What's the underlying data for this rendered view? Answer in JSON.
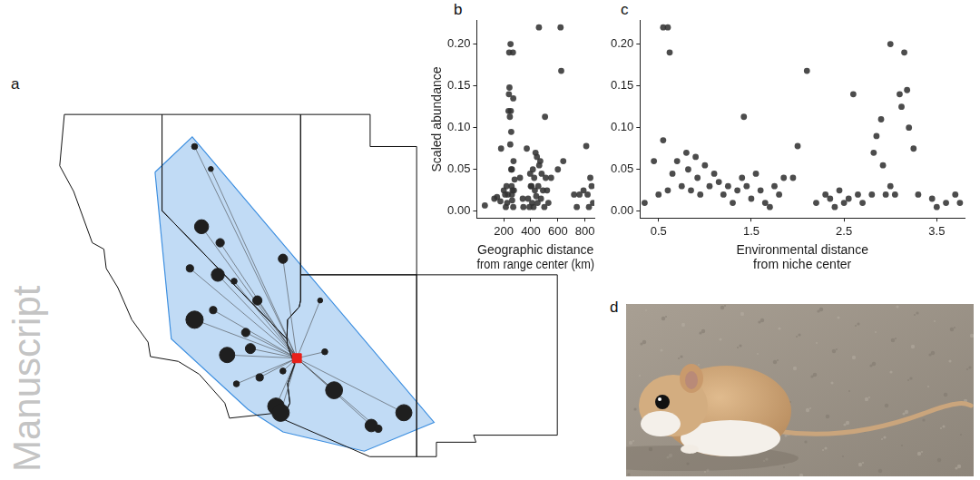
{
  "watermark": "Manuscript",
  "chart_data": [
    {
      "panel": "a",
      "type": "map",
      "xlim": [
        -124.8,
        -102.6
      ],
      "ylim": [
        30.9,
        42.3
      ],
      "tick_labels": false,
      "series": [
        {
          "type": "polygon",
          "color": "#3d8fe0",
          "x": [
            -120.3,
            -118.7,
            -108.3,
            -111.3,
            -114.8,
            -116.3,
            -119.6
          ],
          "values": [
            40.2,
            41.3,
            32.4,
            31.5,
            32.1,
            32.8,
            35.0
          ]
        },
        {
          "type": "sites",
          "color": "#1f1f1f",
          "marker": "circle",
          "x": [
            -118.6,
            -117.9,
            -118.3,
            -117.5,
            -118.8,
            -117.6,
            -116.9,
            -118.6,
            -117.8,
            -116.4,
            -117.2,
            -116.2,
            -116.8,
            -115.8,
            -115.1,
            -114.9,
            -114.8,
            -113.2,
            -112.6,
            -111.0,
            -110.7,
            -109.6,
            -113.0,
            -114.8,
            -115.9
          ],
          "values": [
            41.0,
            40.3,
            38.5,
            38.0,
            37.2,
            37.0,
            36.8,
            35.6,
            35.9,
            35.2,
            34.5,
            34.7,
            33.6,
            33.8,
            32.9,
            32.7,
            37.5,
            36.2,
            33.4,
            32.3,
            32.2,
            32.7,
            34.6,
            34.0,
            36.2
          ],
          "size": [
            0.01,
            0.005,
            0.12,
            0.03,
            0.02,
            0.1,
            0.01,
            0.2,
            0.02,
            0.03,
            0.15,
            0.05,
            0.01,
            0.02,
            0.18,
            0.2,
            0.04,
            0.005,
            0.19,
            0.09,
            0.02,
            0.17,
            0.01,
            0.01,
            0.04
          ]
        },
        {
          "type": "center",
          "color": "#e8201a",
          "marker": "square",
          "x": [
            -114.2
          ],
          "values": [
            34.4
          ]
        }
      ]
    },
    {
      "panel": "b",
      "type": "scatter",
      "x_label": "Geographic distance\nfrom range center (km)",
      "y_label": "Scaled abundance",
      "color": "#333333",
      "marker": "circle",
      "grid": false,
      "xlim": [
        0,
        870
      ],
      "xticks": [
        200,
        400,
        600,
        800
      ],
      "ylim": [
        -0.008,
        0.228
      ],
      "yticks": [
        {
          "value": 0,
          "label": "0.00"
        },
        0.05,
        {
          "value": 0.1,
          "label": "0.10"
        },
        0.15,
        {
          "value": 0.2,
          "label": "0.20"
        }
      ],
      "x": [
        60,
        130,
        150,
        175,
        180,
        200,
        210,
        215,
        220,
        225,
        230,
        235,
        238,
        240,
        242,
        245,
        248,
        250,
        252,
        255,
        255,
        258,
        260,
        260,
        262,
        265,
        268,
        270,
        272,
        270,
        275,
        280,
        320,
        340,
        345,
        370,
        380,
        390,
        395,
        400,
        405,
        410,
        415,
        420,
        425,
        430,
        435,
        440,
        445,
        450,
        455,
        460,
        462,
        470,
        475,
        480,
        490,
        500,
        505,
        510,
        520,
        530,
        550,
        600,
        620,
        625,
        640,
        720,
        740,
        760,
        790,
        810,
        820,
        830,
        840,
        850,
        860
      ],
      "values": [
        0.007,
        0.015,
        0.017,
        0.012,
        0.075,
        0.025,
        0.02,
        0.005,
        0.03,
        0.01,
        0.02,
        0.12,
        0.14,
        0.19,
        0.148,
        0.113,
        0.08,
        0.2,
        0.12,
        0.095,
        0.05,
        0.03,
        0.05,
        0.02,
        0.013,
        0.025,
        0.19,
        0.135,
        0.06,
        0.005,
        0.025,
        0.038,
        0.04,
        0.015,
        0.005,
        0.075,
        0.015,
        0.005,
        0.045,
        0.03,
        0.03,
        0.01,
        0.05,
        0.005,
        0.04,
        0.025,
        0.07,
        0.018,
        0.065,
        0.01,
        0.03,
        0.22,
        0.055,
        0.06,
        0.015,
        0.045,
        0.025,
        0.005,
        0.113,
        0.04,
        0.025,
        0.01,
        0.04,
        0.05,
        0.22,
        0.168,
        0.06,
        0.02,
        0.005,
        0.02,
        0.025,
        0.078,
        0.02,
        0.005,
        0.04,
        0.03,
        0.01
      ]
    },
    {
      "panel": "c",
      "type": "scatter",
      "x_label": "Environmental distance\nfrom niche center",
      "color": "#333333",
      "marker": "circle",
      "grid": false,
      "xlim": [
        0.3,
        3.8
      ],
      "xticks": [
        0.5,
        1.5,
        2.5,
        3.5
      ],
      "ylim": [
        -0.008,
        0.228
      ],
      "yticks": [
        {
          "value": 0,
          "label": "0.00"
        },
        0.05,
        {
          "value": 0.1,
          "label": "0.10"
        },
        0.15,
        {
          "value": 0.2,
          "label": "0.20"
        }
      ],
      "x": [
        0.35,
        0.45,
        0.5,
        0.55,
        0.55,
        0.6,
        0.6,
        0.62,
        0.65,
        0.7,
        0.75,
        0.8,
        0.82,
        0.85,
        0.9,
        0.92,
        0.95,
        1.0,
        1.05,
        1.1,
        1.15,
        1.2,
        1.25,
        1.3,
        1.35,
        1.4,
        1.42,
        1.45,
        1.5,
        1.55,
        1.6,
        1.65,
        1.7,
        1.75,
        1.8,
        1.85,
        1.95,
        2.0,
        2.1,
        2.2,
        2.3,
        2.35,
        2.4,
        2.45,
        2.5,
        2.55,
        2.6,
        2.65,
        2.7,
        2.8,
        2.82,
        2.85,
        2.9,
        2.92,
        2.95,
        3.0,
        3.0,
        3.05,
        3.1,
        3.12,
        3.15,
        3.18,
        3.2,
        3.25,
        3.3,
        3.45,
        3.5,
        3.6,
        3.7,
        3.75
      ],
      "values": [
        0.01,
        0.06,
        0.02,
        0.085,
        0.22,
        0.025,
        0.22,
        0.19,
        0.045,
        0.06,
        0.03,
        0.07,
        0.05,
        0.025,
        0.065,
        0.04,
        0.02,
        0.055,
        0.03,
        0.045,
        0.035,
        0.02,
        0.03,
        0.01,
        0.025,
        0.04,
        0.113,
        0.03,
        0.015,
        0.045,
        0.025,
        0.01,
        0.005,
        0.03,
        0.02,
        0.04,
        0.04,
        0.078,
        0.168,
        0.01,
        0.02,
        0.015,
        0.005,
        0.025,
        0.01,
        0.015,
        0.14,
        0.02,
        0.01,
        0.02,
        0.07,
        0.09,
        0.11,
        0.055,
        0.02,
        0.2,
        0.03,
        0.02,
        0.14,
        0.125,
        0.19,
        0.145,
        0.1,
        0.075,
        0.02,
        0.015,
        0.005,
        0.01,
        0.02,
        0.01
      ]
    }
  ],
  "photo": {
    "panel": "d"
  }
}
